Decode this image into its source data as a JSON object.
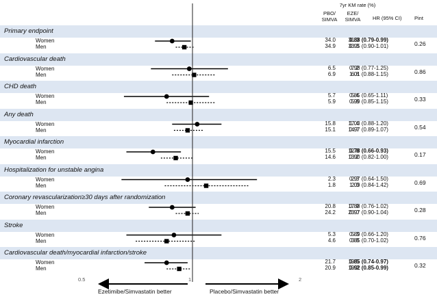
{
  "chart_data": {
    "type": "forest",
    "header": {
      "km_title": "7yr KM rate (%)",
      "col_pbo": "PBO/ SIMVA",
      "col_eze": "EZE/ SIMVA",
      "col_hr": "HR (95% CI)",
      "col_pint": "Pint"
    },
    "x_axis": {
      "scale": "log",
      "ticks": [
        {
          "value": 0.5,
          "label": "0.5"
        },
        {
          "value": 1,
          "label": "1"
        },
        {
          "value": 2,
          "label": "2"
        }
      ],
      "reference": 1,
      "left_label": "Ezetimibe/Simvastatin better",
      "right_label": "Placebo/Simvastatin better"
    },
    "endpoints": [
      {
        "title": "Primary endpoint",
        "pint": "0.26",
        "rows": [
          {
            "sex": "Women",
            "pbo": "34.0",
            "eze": "31.0",
            "hr_text": "0.88 (0.79-0.99)",
            "bold": true,
            "hr": 0.88,
            "lo": 0.79,
            "hi": 0.99
          },
          {
            "sex": "Men",
            "pbo": "34.9",
            "eze": "33.3",
            "hr_text": "0.95 (0.90-1.01)",
            "bold": false,
            "hr": 0.95,
            "lo": 0.9,
            "hi": 1.01
          }
        ]
      },
      {
        "title": "Cardiovascular death",
        "pint": "0.86",
        "rows": [
          {
            "sex": "Women",
            "pbo": "6.5",
            "eze": "7.2",
            "hr_text": "0.98 (0.77-1.25)",
            "bold": false,
            "hr": 0.98,
            "lo": 0.77,
            "hi": 1.25
          },
          {
            "sex": "Men",
            "pbo": "6.9",
            "eze": "6.8",
            "hr_text": "1.01 (0.88-1.15)",
            "bold": false,
            "hr": 1.01,
            "lo": 0.88,
            "hi": 1.15
          }
        ]
      },
      {
        "title": "CHD death",
        "pint": "0.33",
        "rows": [
          {
            "sex": "Women",
            "pbo": "5.7",
            "eze": "5.4",
            "hr_text": "0.85 (0.65-1.11)",
            "bold": false,
            "hr": 0.85,
            "lo": 0.65,
            "hi": 1.11
          },
          {
            "sex": "Men",
            "pbo": "5.9",
            "eze": "5.8",
            "hr_text": "0.99 (0.85-1.15)",
            "bold": false,
            "hr": 0.99,
            "lo": 0.85,
            "hi": 1.15
          }
        ]
      },
      {
        "title": "Any death",
        "pint": "0.54",
        "rows": [
          {
            "sex": "Women",
            "pbo": "15.8",
            "eze": "17.4",
            "hr_text": "1.03 (0.88-1.20)",
            "bold": false,
            "hr": 1.03,
            "lo": 0.88,
            "hi": 1.2
          },
          {
            "sex": "Men",
            "pbo": "15.1",
            "eze": "14.7",
            "hr_text": "0.97 (0.89-1.07)",
            "bold": false,
            "hr": 0.97,
            "lo": 0.89,
            "hi": 1.07
          }
        ]
      },
      {
        "title": "Myocardial infarction",
        "pint": "0.17",
        "rows": [
          {
            "sex": "Women",
            "pbo": "15.5",
            "eze": "12.8",
            "hr_text": "0.78 (0.66-0.93)",
            "bold": true,
            "hr": 0.78,
            "lo": 0.66,
            "hi": 0.93
          },
          {
            "sex": "Men",
            "pbo": "14.6",
            "eze": "13.2",
            "hr_text": "0.90 (0.82-1.00)",
            "bold": false,
            "hr": 0.9,
            "lo": 0.82,
            "hi": 1.0
          }
        ]
      },
      {
        "title": "Hospitalization for unstable angina",
        "pint": "0.69",
        "rows": [
          {
            "sex": "Women",
            "pbo": "2.3",
            "eze": "2.3",
            "hr_text": "0.97 (0.64-1.50)",
            "bold": false,
            "hr": 0.97,
            "lo": 0.64,
            "hi": 1.5
          },
          {
            "sex": "Men",
            "pbo": "1.8",
            "eze": "2.0",
            "hr_text": "1.09 (0.84-1.42)",
            "bold": false,
            "hr": 1.09,
            "lo": 0.84,
            "hi": 1.42
          }
        ]
      },
      {
        "title": "Coronary revascularization≥30 days after randomization",
        "pint": "0.28",
        "rows": [
          {
            "sex": "Women",
            "pbo": "20.8",
            "eze": "17.9",
            "hr_text": "0.88 (0.76-1.02)",
            "bold": false,
            "hr": 0.88,
            "lo": 0.76,
            "hi": 1.02
          },
          {
            "sex": "Men",
            "pbo": "24.2",
            "eze": "23.0",
            "hr_text": "0.97 (0.90-1.04)",
            "bold": false,
            "hr": 0.97,
            "lo": 0.9,
            "hi": 1.04
          }
        ]
      },
      {
        "title": "Stroke",
        "pint": "0.76",
        "rows": [
          {
            "sex": "Women",
            "pbo": "5.3",
            "eze": "5.3",
            "hr_text": "0.89 (0.66-1.20)",
            "bold": false,
            "hr": 0.89,
            "lo": 0.66,
            "hi": 1.2
          },
          {
            "sex": "Men",
            "pbo": "4.6",
            "eze": "3.8",
            "hr_text": "0.85 (0.70-1.02)",
            "bold": false,
            "hr": 0.85,
            "lo": 0.7,
            "hi": 1.02
          }
        ]
      },
      {
        "title": "Cardiovascular death/myocardial infarction/stroke",
        "pint": "0.32",
        "rows": [
          {
            "sex": "Women",
            "pbo": "21.7",
            "eze": "19.5",
            "hr_text": "0.85 (0.74-0.97)",
            "bold": true,
            "hr": 0.85,
            "lo": 0.74,
            "hi": 0.97
          },
          {
            "sex": "Men",
            "pbo": "20.9",
            "eze": "19.2",
            "hr_text": "0.92 (0.85-0.99)",
            "bold": true,
            "hr": 0.92,
            "lo": 0.85,
            "hi": 0.99
          }
        ]
      }
    ],
    "legend": {
      "women_marker": "circle",
      "men_marker": "square"
    }
  }
}
